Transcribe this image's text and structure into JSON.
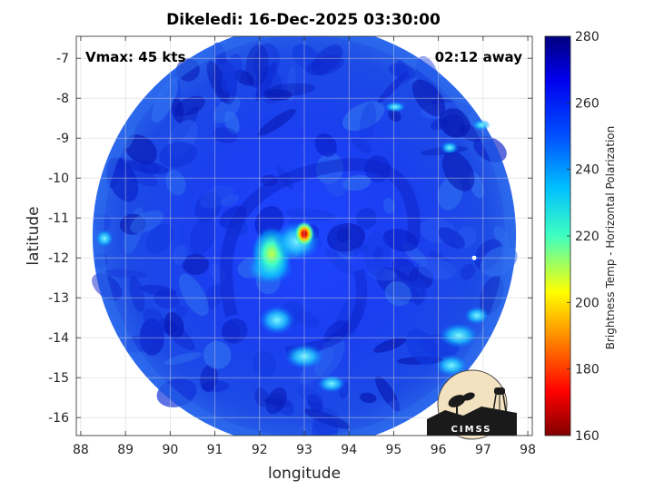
{
  "chart_data": {
    "type": "heatmap",
    "title": "Dikeledi: 16-Dec-2025 03:30:00",
    "xlabel": "longitude",
    "ylabel": "latitude",
    "xlim": [
      87.9,
      98.1
    ],
    "ylim": [
      -16.45,
      -6.45
    ],
    "xticks": [
      88,
      89,
      90,
      91,
      92,
      93,
      94,
      95,
      96,
      97,
      98
    ],
    "yticks": [
      -7,
      -8,
      -9,
      -10,
      -11,
      -12,
      -13,
      -14,
      -15,
      -16
    ],
    "grid": true,
    "annotation_left": "Vmax: 45 kts",
    "annotation_right": "02:12 away",
    "swath": {
      "center_lon": 93.0,
      "center_lat": -11.45,
      "radius_deg": 5.0
    },
    "storm_core": {
      "lon": 93.0,
      "lat": -11.4,
      "min_temp": 175
    },
    "colorbar": {
      "label": "Brightness Temp - Horizontal Polarization",
      "range": [
        160,
        280
      ],
      "ticks": [
        160,
        180,
        200,
        220,
        240,
        260,
        280
      ],
      "colormap": "jet"
    },
    "logo_text": "CIMSS"
  }
}
